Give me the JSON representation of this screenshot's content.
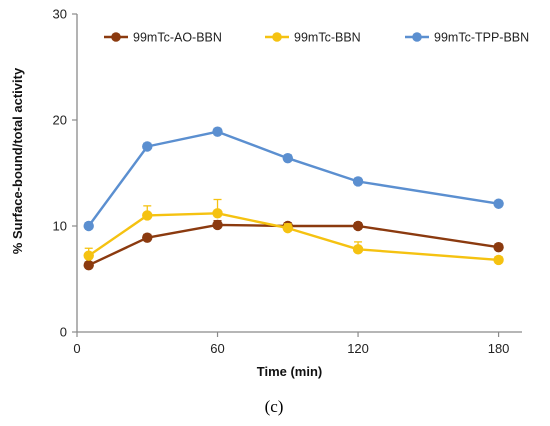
{
  "chart_data": {
    "type": "line",
    "title": "",
    "xlabel": "Time (min)",
    "ylabel": "% Surface-bound/total activity",
    "x": [
      5,
      30,
      60,
      90,
      120,
      180
    ],
    "xlim": [
      0,
      190
    ],
    "ylim": [
      0,
      30
    ],
    "xticks": [
      "0",
      "60",
      "120",
      "180"
    ],
    "yticks": [
      "0",
      "10",
      "20",
      "30"
    ],
    "grid": false,
    "legend_position": "top",
    "series": [
      {
        "name": "99mTc-AO-BBN",
        "color": "#8b3a0f",
        "values": [
          6.3,
          8.9,
          10.1,
          10.0,
          10.0,
          8.0
        ],
        "errors": [
          0.3,
          0.3,
          0.4,
          0.3,
          0.3,
          0.3
        ]
      },
      {
        "name": "99mTc-BBN",
        "color": "#f5c211",
        "values": [
          7.2,
          11.0,
          11.2,
          9.8,
          7.8,
          6.8
        ],
        "errors": [
          0.7,
          0.9,
          1.3,
          0.4,
          0.7,
          0.3
        ]
      },
      {
        "name": "99mTc-TPP-BBN",
        "color": "#5b8fd0",
        "values": [
          10.0,
          17.5,
          18.9,
          16.4,
          14.2,
          12.1
        ],
        "errors": [
          0.3,
          0.3,
          0.3,
          0.3,
          0.3,
          0.3
        ]
      }
    ]
  },
  "panel_label": "(c)"
}
